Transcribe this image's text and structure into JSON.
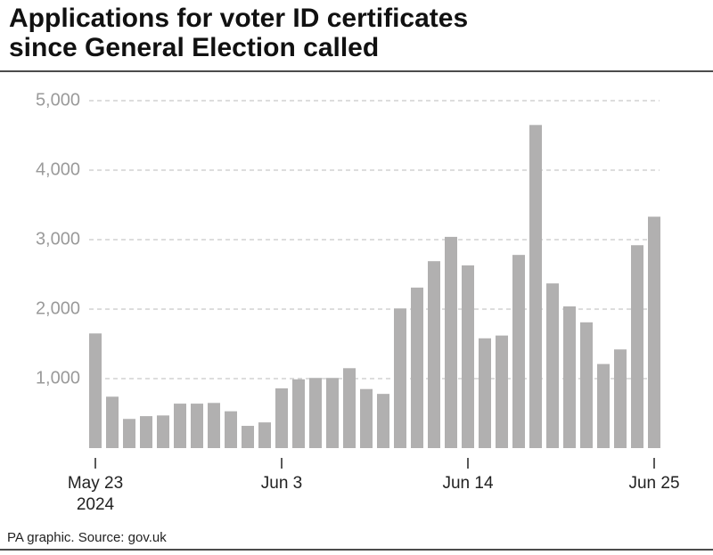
{
  "chart_data": {
    "type": "bar",
    "title": [
      "Applications for voter ID certificates",
      "since General Election called"
    ],
    "source": "PA graphic. Source: gov.uk",
    "categories": [
      "May 23",
      null,
      null,
      null,
      null,
      null,
      null,
      null,
      null,
      null,
      null,
      "Jun 3",
      null,
      null,
      null,
      null,
      null,
      null,
      null,
      null,
      null,
      null,
      "Jun 14",
      null,
      null,
      null,
      null,
      null,
      null,
      null,
      null,
      null,
      null,
      "Jun 25"
    ],
    "year_label": "2024",
    "values": [
      1650,
      740,
      420,
      460,
      470,
      640,
      640,
      650,
      530,
      320,
      370,
      860,
      990,
      1010,
      1010,
      1150,
      850,
      780,
      2010,
      2310,
      2690,
      3040,
      2630,
      1580,
      1620,
      2780,
      4650,
      2370,
      2040,
      1810,
      1210,
      1420,
      2920,
      3330
    ],
    "color": "#b1b0b0",
    "ylim": [
      0,
      5000
    ],
    "yticks": [
      {
        "value": 1000,
        "label": "1,000"
      },
      {
        "value": 2000,
        "label": "2,000"
      },
      {
        "value": 3000,
        "label": "3,000"
      },
      {
        "value": 4000,
        "label": "4,000"
      },
      {
        "value": 5000,
        "label": "5,000"
      }
    ],
    "grid": true
  }
}
